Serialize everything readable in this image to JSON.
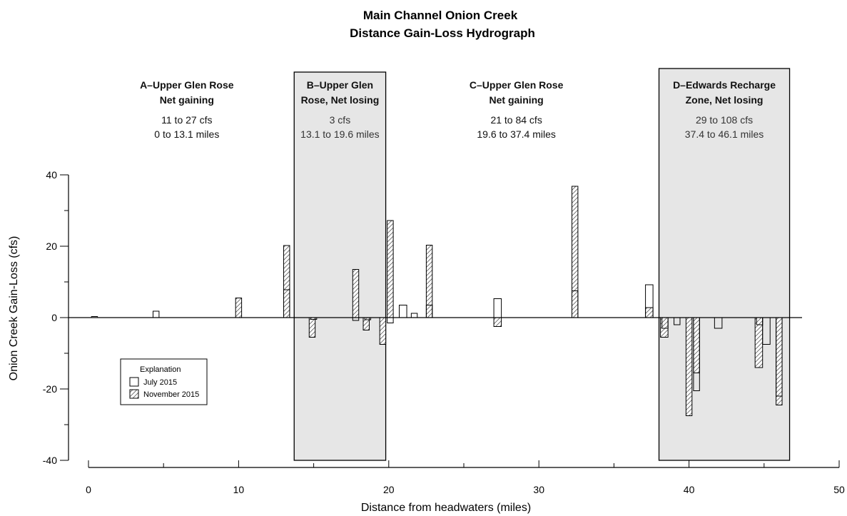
{
  "chart_data": {
    "type": "bar",
    "title": "Main Channel Onion Creek",
    "subtitle": "Distance Gain-Loss Hydrograph",
    "xlabel": "Distance from headwaters (miles)",
    "ylabel": "Onion Creek Gain-Loss (cfs)",
    "xlim": [
      0,
      50
    ],
    "ylim": [
      -40,
      40
    ],
    "x_ticks": [
      0,
      10,
      20,
      30,
      40,
      50
    ],
    "y_ticks": [
      -40,
      -20,
      0,
      20,
      40
    ],
    "grid": false,
    "legend_position": "bottom-left",
    "legend_title": "Explanation",
    "series": [
      {
        "name": "July 2015",
        "style": "open",
        "bars": [
          {
            "x0": 0.2,
            "x1": 0.6,
            "value": 0.3
          },
          {
            "x0": 4.3,
            "x1": 4.7,
            "value": 1.8
          },
          {
            "x0": 13.0,
            "x1": 13.4,
            "value": 7.8
          },
          {
            "x0": 14.8,
            "x1": 15.2,
            "value": -0.5
          },
          {
            "x0": 17.6,
            "x1": 18.0,
            "value": -0.8
          },
          {
            "x0": 18.4,
            "x1": 18.8,
            "value": -0.6
          },
          {
            "x0": 19.9,
            "x1": 20.3,
            "value": -1.5
          },
          {
            "x0": 20.7,
            "x1": 21.2,
            "value": 3.5
          },
          {
            "x0": 21.5,
            "x1": 21.9,
            "value": 1.2
          },
          {
            "x0": 22.5,
            "x1": 22.9,
            "value": 3.5
          },
          {
            "x0": 27.0,
            "x1": 27.5,
            "value": 5.3
          },
          {
            "x0": 32.2,
            "x1": 32.6,
            "value": 7.5
          },
          {
            "x0": 37.1,
            "x1": 37.6,
            "value": 9.2
          },
          {
            "x0": 38.2,
            "x1": 38.6,
            "value": -3.0
          },
          {
            "x0": 39.0,
            "x1": 39.4,
            "value": -2.0
          },
          {
            "x0": 40.3,
            "x1": 40.7,
            "value": -20.5
          },
          {
            "x0": 41.7,
            "x1": 42.2,
            "value": -3.0
          },
          {
            "x0": 44.5,
            "x1": 44.9,
            "value": -2.0
          },
          {
            "x0": 44.9,
            "x1": 45.4,
            "value": -7.5
          },
          {
            "x0": 45.8,
            "x1": 46.2,
            "value": -22.0
          }
        ]
      },
      {
        "name": "November 2015",
        "style": "hatched",
        "bars": [
          {
            "x0": 9.8,
            "x1": 10.2,
            "value": 5.5
          },
          {
            "x0": 13.0,
            "x1": 13.4,
            "value": 20.2
          },
          {
            "x0": 14.7,
            "x1": 15.1,
            "value": -5.5
          },
          {
            "x0": 17.6,
            "x1": 18.0,
            "value": 13.5
          },
          {
            "x0": 18.3,
            "x1": 18.7,
            "value": -3.5
          },
          {
            "x0": 19.4,
            "x1": 19.8,
            "value": -7.5
          },
          {
            "x0": 19.9,
            "x1": 20.3,
            "value": 27.2
          },
          {
            "x0": 22.5,
            "x1": 22.9,
            "value": 20.3
          },
          {
            "x0": 27.0,
            "x1": 27.5,
            "value": -2.5
          },
          {
            "x0": 32.2,
            "x1": 32.6,
            "value": 36.8
          },
          {
            "x0": 37.1,
            "x1": 37.6,
            "value": 2.8
          },
          {
            "x0": 38.1,
            "x1": 38.6,
            "value": -5.5
          },
          {
            "x0": 39.8,
            "x1": 40.2,
            "value": -27.5
          },
          {
            "x0": 40.3,
            "x1": 40.7,
            "value": -15.5
          },
          {
            "x0": 44.4,
            "x1": 44.9,
            "value": -14.0
          },
          {
            "x0": 45.8,
            "x1": 46.2,
            "value": -24.5
          }
        ]
      }
    ],
    "segments": [
      {
        "x0": 0,
        "x1": 13.1,
        "shaded": false,
        "heading1": "A–Upper Glen Rose",
        "heading2": "Net gaining",
        "range": "11 to 27 cfs",
        "miles": "0 to 13.1 miles"
      },
      {
        "x0": 13.7,
        "x1": 19.8,
        "shaded": true,
        "heading1": "B–Upper Glen",
        "heading2": "Rose, Net losing",
        "range": "3 cfs",
        "miles": "13.1 to 19.6 miles"
      },
      {
        "x0": 19.6,
        "x1": 37.4,
        "shaded": false,
        "heading1": "C–Upper Glen Rose",
        "heading2": "Net gaining",
        "range": "21 to 84 cfs",
        "miles": "19.6 to 37.4 miles"
      },
      {
        "x0": 38.0,
        "x1": 46.7,
        "shaded": true,
        "heading1": "D–Edwards Recharge",
        "heading2": "Zone, Net losing",
        "range": "29 to 108 cfs",
        "miles": "37.4 to 46.1 miles"
      }
    ],
    "colors": {
      "shade": "#e6e6e6",
      "stroke": "#000000",
      "hatch": "#666666",
      "text": "#111111"
    }
  }
}
